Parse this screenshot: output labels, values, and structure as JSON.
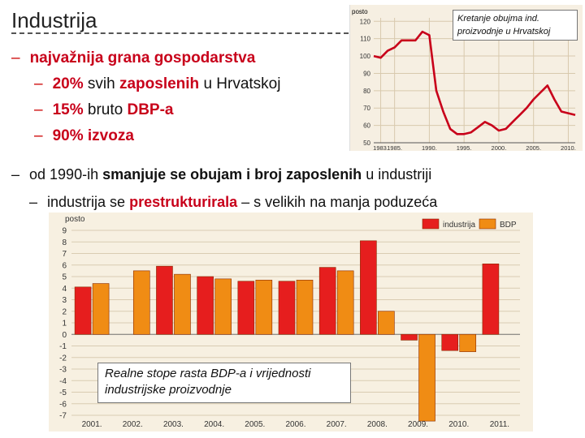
{
  "slide": {
    "title": "Industrija",
    "bullets": {
      "b1": "najvažnija grana gospodarstva",
      "b2_pct": "20%",
      "b2_a": "svih",
      "b2_b": "zaposlenih",
      "b2_c": "u Hrvatskoj",
      "b3_pct": "15%",
      "b3_a": "bruto",
      "b3_b": "DBP-a",
      "b4_pct": "90%",
      "b4_a": "izvoza",
      "b5_a": "od 1990-ih",
      "b5_b": "smanjuje se obujam i broj zaposlenih",
      "b5_c": "u industriji",
      "b6_a": "industrija se",
      "b6_b": "prestrukturirala",
      "b6_c": "– s velikih na manja poduzeća"
    }
  },
  "chart_data": [
    {
      "type": "line",
      "title": "Kretanje obujma ind. proizvodnje u Hrvatskoj",
      "ylabel": "posto",
      "ylim": [
        50,
        122
      ],
      "xlim": [
        1982,
        2011
      ],
      "yticks": [
        "50",
        "60",
        "70",
        "80",
        "90",
        "100",
        "110",
        "120"
      ],
      "xticks": [
        "1983.",
        "1985.",
        "1990.",
        "1995.",
        "2000.",
        "2005.",
        "2010."
      ],
      "xtick_values": [
        1983,
        1985,
        1990,
        1995,
        2000,
        2005,
        2010
      ],
      "series": [
        {
          "name": "industrija",
          "x": [
            1982,
            1983,
            1984,
            1985,
            1986,
            1987,
            1988,
            1989,
            1990,
            1991,
            1992,
            1993,
            1994,
            1995,
            1996,
            1997,
            1998,
            1999,
            2000,
            2001,
            2002,
            2003,
            2004,
            2005,
            2006,
            2007,
            2008,
            2009,
            2010,
            2011
          ],
          "values": [
            100,
            99,
            103,
            105,
            109,
            109,
            109,
            114,
            112,
            80,
            68,
            58,
            55,
            55,
            56,
            59,
            62,
            60,
            57,
            58,
            62,
            66,
            70,
            75,
            79,
            83,
            75,
            68,
            67,
            66
          ]
        }
      ]
    },
    {
      "type": "bar",
      "title": "Realne stope rasta BDP-a i vrijednosti industrijske proizvodnje",
      "ylabel": "posto",
      "ylim": [
        -7,
        9
      ],
      "yticks": [
        "9",
        "8",
        "7",
        "6",
        "5",
        "4",
        "3",
        "2",
        "1",
        "0",
        "-1",
        "-2",
        "-3",
        "-4",
        "-5",
        "-6",
        "-7"
      ],
      "categories": [
        "2001.",
        "2002.",
        "2003.",
        "2004.",
        "2005.",
        "2006.",
        "2007.",
        "2008.",
        "2009.",
        "2010.",
        "2011."
      ],
      "series": [
        {
          "name": "industrija",
          "color": "#e61e1e",
          "values": [
            4.1,
            0,
            5.9,
            5.0,
            4.6,
            4.6,
            5.8,
            8.1,
            -0.5,
            -1.4,
            6.1
          ]
        },
        {
          "name": "BDP",
          "color": "#f08c14",
          "values": [
            4.4,
            5.5,
            5.2,
            4.8,
            4.7,
            4.7,
            5.5,
            2.0,
            -7.5,
            -1.5,
            0
          ]
        }
      ]
    }
  ]
}
